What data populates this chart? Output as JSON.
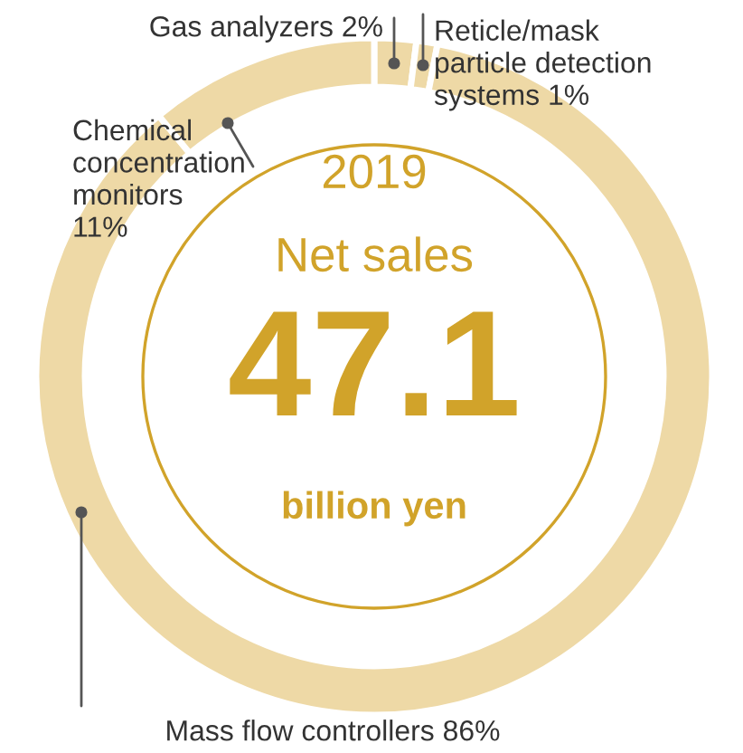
{
  "chart_data": {
    "type": "donut",
    "title": "2019",
    "subtitle": "Net sales",
    "categories": [
      "Gas analyzers",
      "Reticle/mask\nparticle detection\nsystems",
      "Mass flow controllers",
      "Chemical\nconcentration\nmonitors"
    ],
    "values": [
      2,
      1,
      86,
      11
    ],
    "value_labels": [
      "2%",
      "1%",
      "86%",
      "11%"
    ],
    "colors": [
      "#eed9a6",
      "#eed9a6",
      "#eed9a6",
      "#eed9a6"
    ],
    "annotations": [
      "47.1",
      "billion yen"
    ]
  }
}
